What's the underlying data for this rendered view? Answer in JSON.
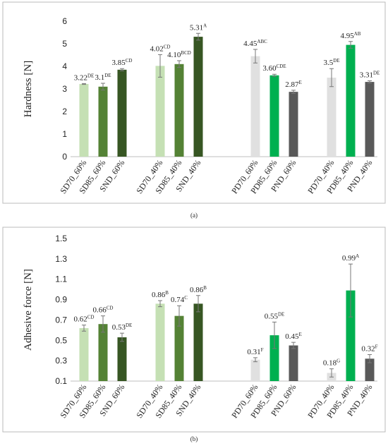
{
  "chart_data": [
    {
      "type": "bar",
      "y_label": "Hardness [N]",
      "caption": "(a)",
      "categories": [
        "SD70_60%",
        "SD85_60%",
        "SND_60%",
        null,
        "SD70_40%",
        "SD85_40%",
        "SND_40%",
        null,
        null,
        "PD70_60%",
        "PD85_60%",
        "PND_60%",
        null,
        "PD70_40%",
        "PD85_40%",
        "PND_40%"
      ],
      "values": [
        3.22,
        3.1,
        3.85,
        null,
        4.02,
        4.1,
        5.31,
        null,
        null,
        4.45,
        3.6,
        2.87,
        null,
        3.5,
        4.95,
        3.31
      ],
      "errors": [
        0.02,
        0.15,
        0.05,
        null,
        0.5,
        0.15,
        0.15,
        null,
        null,
        0.3,
        0.05,
        0.07,
        null,
        0.4,
        0.15,
        0.05
      ],
      "value_labels": [
        "3.22",
        "3.1",
        "3.85",
        null,
        "4.02",
        "4.10",
        "5.31",
        null,
        null,
        "4.45",
        "3.60",
        "2.87",
        null,
        "3.5",
        "4.95",
        "3.31"
      ],
      "letters": [
        "DE",
        "DE",
        "CD",
        null,
        "CD",
        "BCD",
        "A",
        null,
        null,
        "ABC",
        "CDE",
        "E",
        null,
        "DE",
        "AB",
        "DE"
      ],
      "colors": [
        "#c5e0b4",
        "#548235",
        "#375623",
        null,
        "#c5e0b4",
        "#548235",
        "#375623",
        null,
        null,
        "#e0e0e0",
        "#00b050",
        "#595959",
        null,
        "#e0e0e0",
        "#00b050",
        "#595959"
      ],
      "ylim": [
        0,
        6
      ],
      "yticks": [
        0,
        1,
        2,
        3,
        4,
        5,
        6
      ]
    },
    {
      "type": "bar",
      "y_label": "Adhesive force [N]",
      "caption": "(b)",
      "categories": [
        "SD70_60%",
        "SD85_60%",
        "SND_60%",
        null,
        "SD70_40%",
        "SD85_40%",
        "SND_40%",
        null,
        null,
        "PD70_60%",
        "PD85_60%",
        "PND_60%",
        null,
        "PD70_40%",
        "PD85_40%",
        "PND_40%"
      ],
      "values": [
        0.62,
        0.66,
        0.53,
        null,
        0.86,
        0.74,
        0.86,
        null,
        null,
        0.31,
        0.55,
        0.45,
        null,
        0.18,
        0.99,
        0.32
      ],
      "errors": [
        0.03,
        0.08,
        0.04,
        null,
        0.03,
        0.1,
        0.08,
        null,
        null,
        0.02,
        0.13,
        0.03,
        null,
        0.04,
        0.26,
        0.04
      ],
      "value_labels": [
        "0.62",
        "0.66",
        "0.53",
        null,
        "0.86",
        "0.74",
        "0.86",
        null,
        null,
        "0.31",
        "0.55",
        "0.45",
        null,
        "0.18",
        "0.99",
        "0.32"
      ],
      "letters": [
        "CD",
        "CD",
        "DE",
        null,
        "B",
        "C",
        "B",
        null,
        null,
        "F",
        "DE",
        "E",
        null,
        "G",
        "A",
        "F"
      ],
      "colors": [
        "#c5e0b4",
        "#548235",
        "#375623",
        null,
        "#c5e0b4",
        "#548235",
        "#375623",
        null,
        null,
        "#e0e0e0",
        "#00b050",
        "#595959",
        null,
        "#e0e0e0",
        "#00b050",
        "#595959"
      ],
      "ylim": [
        0.1,
        1.5
      ],
      "yticks": [
        0.1,
        0.3,
        0.5,
        0.7,
        0.9,
        1.1,
        1.3,
        1.5
      ]
    }
  ]
}
